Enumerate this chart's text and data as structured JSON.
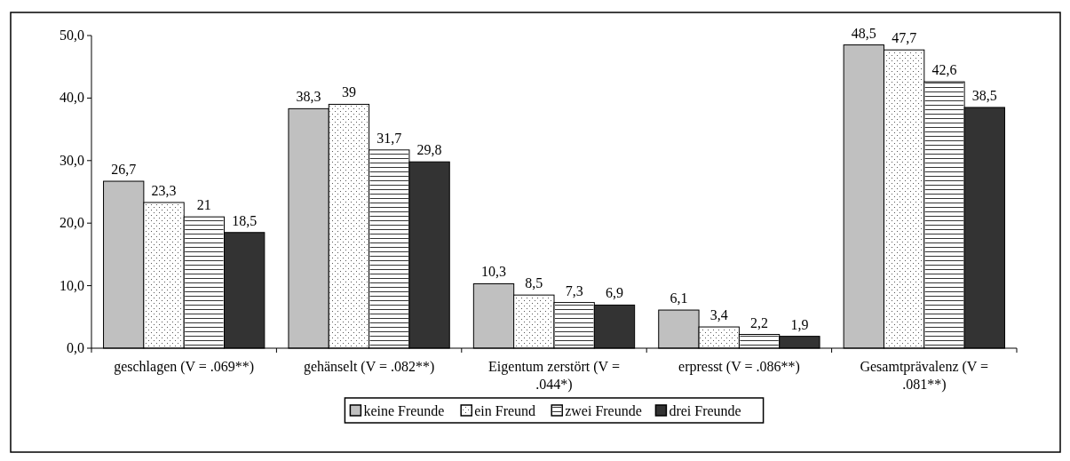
{
  "chart_data": {
    "type": "bar",
    "categories": [
      "geschlagen (V = .069**)",
      "gehänselt (V = .082**)",
      "Eigentum zerstört (V = .044*)",
      "erpresst (V = .086**)",
      "Gesamtprävalenz (V = .081**)"
    ],
    "series": [
      {
        "name": "keine Freunde",
        "color": "#c0c0c0",
        "values": [
          26.7,
          38.3,
          10.3,
          6.1,
          48.5
        ],
        "value_labels": [
          "26,7",
          "38,3",
          "10,3",
          "6,1",
          "48,5"
        ]
      },
      {
        "name": "ein Freund",
        "color": "#ffffff",
        "values": [
          23.3,
          39,
          8.5,
          3.4,
          47.7
        ],
        "value_labels": [
          "23,3",
          "39",
          "8,5",
          "3,4",
          "47,7"
        ]
      },
      {
        "name": "zwei Freunde",
        "color": "#ffffff",
        "values": [
          21,
          31.7,
          7.3,
          2.2,
          42.6
        ],
        "value_labels": [
          "21",
          "31,7",
          "7,3",
          "2,2",
          "42,6"
        ]
      },
      {
        "name": "drei Freunde",
        "color": "#333333",
        "values": [
          18.5,
          29.8,
          6.9,
          1.9,
          38.5
        ],
        "value_labels": [
          "18,5",
          "29,8",
          "6,9",
          "1,9",
          "38,5"
        ]
      }
    ],
    "ylim": [
      0,
      50
    ],
    "yticks": [
      {
        "value": 0,
        "label": "0,0"
      },
      {
        "value": 10,
        "label": "10,0"
      },
      {
        "value": 20,
        "label": "20,0"
      },
      {
        "value": 30,
        "label": "30,0"
      },
      {
        "value": 40,
        "label": "40,0"
      },
      {
        "value": 50,
        "label": "50,0"
      }
    ],
    "grid": false,
    "legend": "bottom"
  }
}
